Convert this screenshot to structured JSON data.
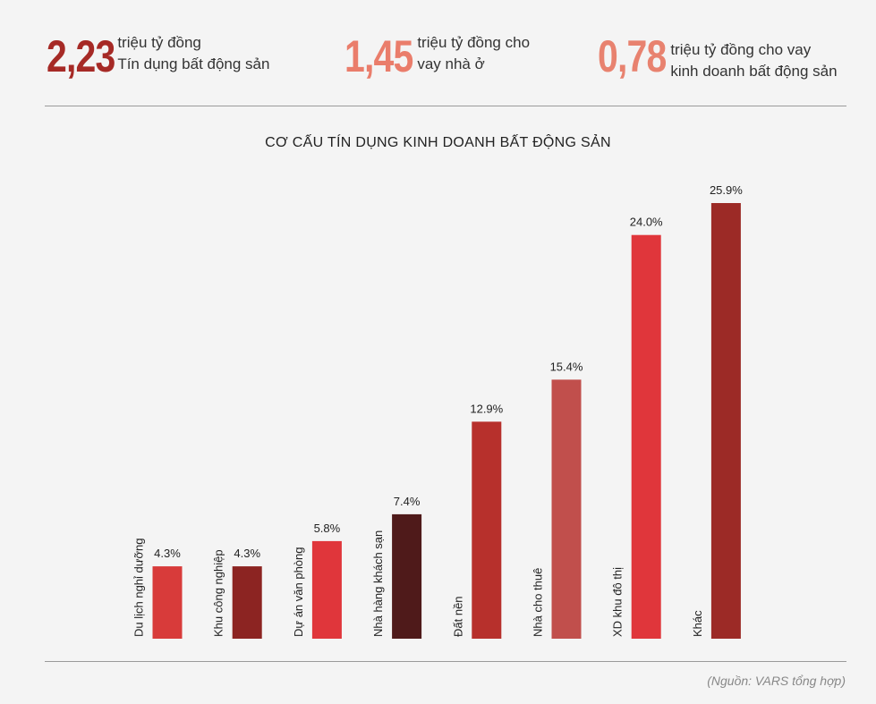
{
  "stats": [
    {
      "value": "2,23",
      "line1": "triệu tỷ đồng",
      "line2": "Tín dụng bất động sản",
      "color": "#a62a26"
    },
    {
      "value": "1,45",
      "line1": "triệu tỷ đồng cho",
      "line2": "vay nhà ở",
      "color": "#ea7d6b"
    },
    {
      "value": "0,78",
      "line1": "triệu tỷ đồng cho vay",
      "line2": "kinh doanh bất động sản",
      "color": "#e8826f"
    }
  ],
  "chart_data": {
    "type": "bar",
    "title": "CƠ CẤU TÍN DỤNG KINH DOANH BẤT ĐỘNG SẢN",
    "categories": [
      "Du lịch nghỉ dưỡng",
      "Khu công nghiệp",
      "Dự án văn phòng",
      "Nhà hàng khách sạn",
      "Đất nền",
      "Nhà cho thuê",
      "XD khu đô thị",
      "Khác"
    ],
    "values": [
      4.3,
      4.3,
      5.8,
      7.4,
      12.9,
      15.4,
      24.0,
      25.9
    ],
    "value_labels": [
      "4.3%",
      "4.3%",
      "5.8%",
      "7.4%",
      "12.9%",
      "15.4%",
      "24.0%",
      "25.9%"
    ],
    "colors": [
      "#d83b3a",
      "#8c2422",
      "#e0363b",
      "#4f1a1a",
      "#b7302c",
      "#e0363b",
      "#c14f4c",
      "#e0363b",
      "#9c2a26"
    ],
    "bar_colors": [
      "#d83b3a",
      "#8c2422",
      "#e0363b",
      "#4f1a1a",
      "#b7302c",
      "#c14f4c",
      "#e0363b",
      "#9c2a26"
    ],
    "ylim": [
      0,
      25.9
    ],
    "grid": false,
    "legend": "none"
  },
  "source": "(Nguồn: VARS tổng hợp)"
}
